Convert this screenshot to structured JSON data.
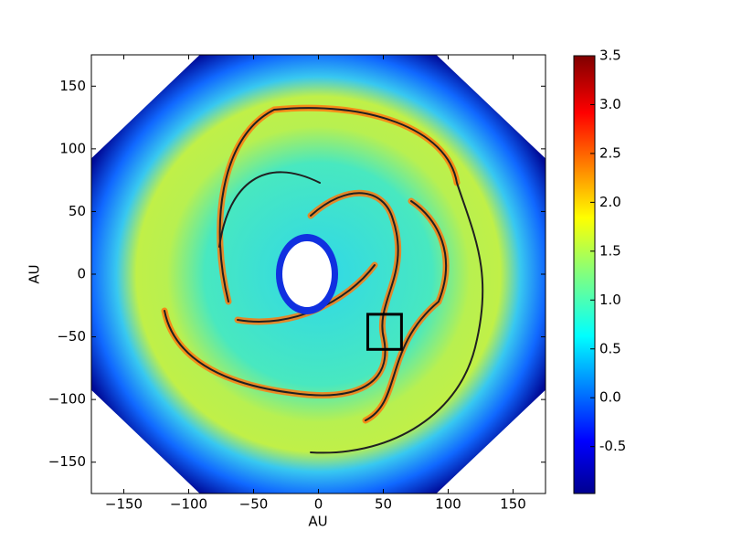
{
  "chart_data": {
    "type": "image",
    "xlabel": "AU",
    "ylabel": "AU",
    "xlim": [
      -175,
      175
    ],
    "ylim": [
      -175,
      175
    ],
    "xticks": [
      {
        "value": -150,
        "label": "−150"
      },
      {
        "value": -100,
        "label": "−100"
      },
      {
        "value": -50,
        "label": "−50"
      },
      0,
      50,
      100,
      150
    ],
    "yticks": [
      {
        "value": -150,
        "label": "−150"
      },
      {
        "value": -100,
        "label": "−100"
      },
      {
        "value": -50,
        "label": "−50"
      },
      0,
      50,
      100,
      150
    ],
    "colorbar": {
      "clim": [
        -0.98,
        3.5
      ],
      "colormap": "jet",
      "ticks": [
        -0.5,
        {
          "value": 0,
          "label": "0.0"
        },
        0.5,
        {
          "value": 1,
          "label": "1.0"
        },
        1.5,
        {
          "value": 2,
          "label": "2.0"
        },
        2.5,
        {
          "value": 3,
          "label": "3.0"
        },
        3.5
      ]
    },
    "box": {
      "xlim": [
        38,
        64
      ],
      "ylim": [
        -60,
        -32
      ]
    }
  }
}
